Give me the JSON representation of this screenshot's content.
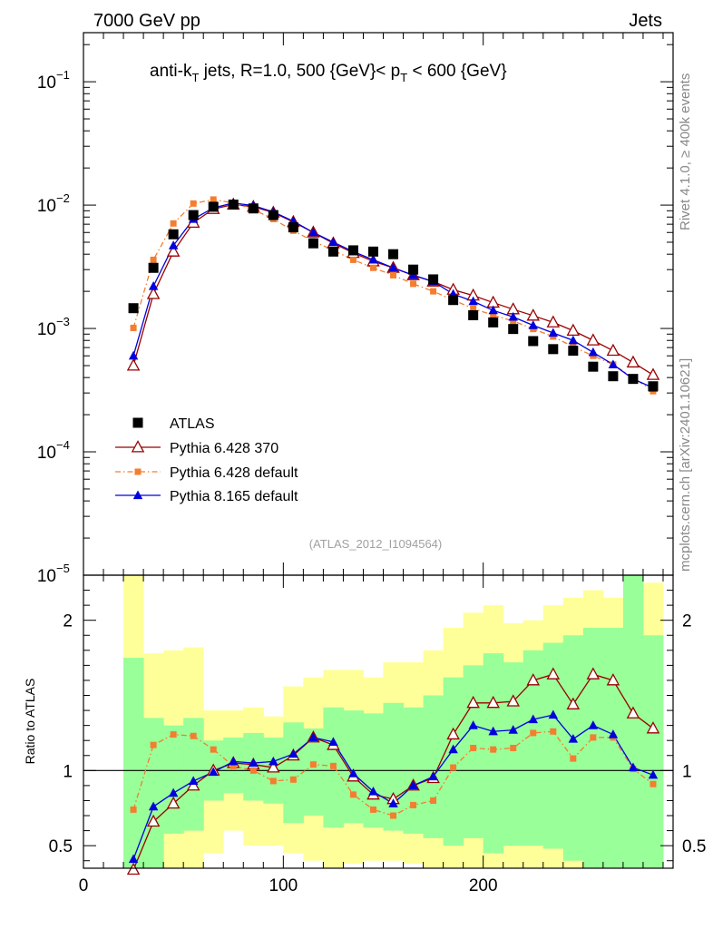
{
  "header": {
    "energy_label": "7000 GeV pp",
    "category_label": "Jets",
    "right_label_top": "Rivet 4.1.0, ≥ 400k events",
    "right_label_bottom": "mcplots.cern.ch [arXiv:2401.10621]"
  },
  "colors": {
    "atlas": "#000000",
    "py6_370": "#990000",
    "py6_default": "#f47d30",
    "py8_default": "#0000dd",
    "band_inner": "#99ff99",
    "band_outer": "#ffff99"
  },
  "chart_data": [
    {
      "type": "line",
      "scale": "log",
      "title": "anti-k_T jets, R=1.0, 500 {GeV}< p_T < 600 {GeV}",
      "title_parts": {
        "pre": "anti-k",
        "sub1": "T",
        "mid": " jets, R=1.0, 500 {GeV}< p",
        "sub2": "T",
        "post": " < 600 {GeV}"
      },
      "watermark": "(ATLAS_2012_I1094564)",
      "xlim": [
        0,
        295
      ],
      "ylim": [
        1e-05,
        0.25
      ],
      "y_ticks": [
        {
          "value": 0.1,
          "label": "10",
          "exp": "−1"
        },
        {
          "value": 0.01,
          "label": "10",
          "exp": "−2"
        },
        {
          "value": 0.001,
          "label": "10",
          "exp": "−3"
        },
        {
          "value": 0.0001,
          "label": "10",
          "exp": "−4"
        },
        {
          "value": 1e-05,
          "label": "10",
          "exp": "−5"
        }
      ],
      "x": [
        25,
        35,
        45,
        55,
        65,
        75,
        85,
        95,
        105,
        115,
        125,
        135,
        145,
        155,
        165,
        175,
        185,
        195,
        205,
        215,
        225,
        235,
        245,
        255,
        265,
        275,
        285
      ],
      "series": [
        {
          "name": "ATLAS",
          "style": "square",
          "values": [
            0.00146,
            0.0031,
            0.0058,
            0.0083,
            0.0097,
            0.0101,
            0.0094,
            0.0083,
            0.0066,
            0.0049,
            0.0042,
            0.0043,
            0.0042,
            0.004,
            0.003,
            0.0025,
            0.0017,
            0.00128,
            0.00112,
            0.00099,
            0.00079,
            0.00068,
            0.00066,
            0.00049,
            0.00041,
            0.00039,
            0.00034
          ]
        },
        {
          "name": "Pythia 6.428 370",
          "style": "open-triangle",
          "values": [
            0.0005,
            0.0019,
            0.0042,
            0.0072,
            0.0093,
            0.0101,
            0.0097,
            0.0087,
            0.0073,
            0.006,
            0.0049,
            0.0041,
            0.0035,
            0.0031,
            0.0027,
            0.0024,
            0.00206,
            0.00185,
            0.00162,
            0.00143,
            0.00127,
            0.00112,
            0.00096,
            0.0008,
            0.00066,
            0.00053,
            0.00042
          ]
        },
        {
          "name": "Pythia 6.428 default",
          "style": "dashdot-square",
          "values": [
            0.00101,
            0.0036,
            0.0071,
            0.0103,
            0.0111,
            0.0104,
            0.0092,
            0.0077,
            0.0062,
            0.0051,
            0.0043,
            0.0036,
            0.0031,
            0.0027,
            0.0023,
            0.002,
            0.0017,
            0.00145,
            0.00128,
            0.00115,
            0.00099,
            0.00086,
            0.00071,
            0.0006,
            0.00051,
            0.0004,
            0.00031
          ]
        },
        {
          "name": "Pythia 8.165 default",
          "style": "filled-triangle",
          "values": [
            0.0006,
            0.0022,
            0.0047,
            0.0077,
            0.0095,
            0.0104,
            0.0099,
            0.0088,
            0.0074,
            0.006,
            0.005,
            0.0042,
            0.0036,
            0.0031,
            0.0027,
            0.0024,
            0.0019,
            0.00166,
            0.0014,
            0.00124,
            0.00106,
            0.00092,
            0.0008,
            0.00064,
            0.00051,
            0.00039,
            0.00033
          ]
        }
      ]
    },
    {
      "type": "line",
      "ylabel": "Ratio to ATLAS",
      "xlim": [
        0,
        295
      ],
      "ylim": [
        0.35,
        2.3
      ],
      "x_ticks": [
        0,
        100,
        200
      ],
      "y_ticks": [
        0.5,
        1,
        2
      ],
      "x": [
        25,
        35,
        45,
        55,
        65,
        75,
        85,
        95,
        105,
        115,
        125,
        135,
        145,
        155,
        165,
        175,
        185,
        195,
        205,
        215,
        225,
        235,
        245,
        255,
        265,
        275,
        285
      ],
      "band_edges": [
        20,
        30,
        40,
        50,
        60,
        70,
        80,
        90,
        100,
        110,
        120,
        130,
        140,
        150,
        160,
        170,
        180,
        190,
        200,
        210,
        220,
        230,
        240,
        250,
        260,
        270,
        280,
        290
      ],
      "band_inner": [
        [
          0.35,
          1.75
        ],
        [
          0.35,
          1.35
        ],
        [
          0.58,
          1.3
        ],
        [
          0.6,
          1.35
        ],
        [
          0.8,
          1.2
        ],
        [
          0.85,
          1.22
        ],
        [
          0.8,
          1.25
        ],
        [
          0.78,
          1.22
        ],
        [
          0.65,
          1.32
        ],
        [
          0.7,
          1.28
        ],
        [
          0.62,
          1.42
        ],
        [
          0.65,
          1.4
        ],
        [
          0.62,
          1.38
        ],
        [
          0.6,
          1.45
        ],
        [
          0.58,
          1.42
        ],
        [
          0.55,
          1.5
        ],
        [
          0.5,
          1.62
        ],
        [
          0.55,
          1.7
        ],
        [
          0.45,
          1.78
        ],
        [
          0.5,
          1.72
        ],
        [
          0.5,
          1.8
        ],
        [
          0.48,
          1.85
        ],
        [
          0.4,
          1.9
        ],
        [
          0.35,
          1.95
        ],
        [
          0.35,
          1.95
        ],
        [
          0.35,
          2.3
        ],
        [
          0.35,
          1.9
        ]
      ],
      "band_outer": [
        [
          0.35,
          2.3
        ],
        [
          0.35,
          1.78
        ],
        [
          0.35,
          1.8
        ],
        [
          0.35,
          1.82
        ],
        [
          0.45,
          1.4
        ],
        [
          0.6,
          1.4
        ],
        [
          0.5,
          1.42
        ],
        [
          0.5,
          1.36
        ],
        [
          0.45,
          1.56
        ],
        [
          0.4,
          1.62
        ],
        [
          0.35,
          1.67
        ],
        [
          0.38,
          1.67
        ],
        [
          0.4,
          1.62
        ],
        [
          0.4,
          1.72
        ],
        [
          0.38,
          1.72
        ],
        [
          0.35,
          1.8
        ],
        [
          0.35,
          1.95
        ],
        [
          0.35,
          2.05
        ],
        [
          0.35,
          2.1
        ],
        [
          0.35,
          1.98
        ],
        [
          0.35,
          2.0
        ],
        [
          0.35,
          2.1
        ],
        [
          0.35,
          2.15
        ],
        [
          0.35,
          2.2
        ],
        [
          0.35,
          2.15
        ],
        [
          0.35,
          2.35
        ],
        [
          0.35,
          2.25
        ]
      ],
      "series": [
        {
          "name": "Pythia 6.428 370",
          "values": [
            0.34,
            0.66,
            0.78,
            0.9,
            1.0,
            1.05,
            1.04,
            1.02,
            1.1,
            1.22,
            1.17,
            0.96,
            0.84,
            0.81,
            0.9,
            0.95,
            1.24,
            1.45,
            1.45,
            1.46,
            1.6,
            1.64,
            1.44,
            1.64,
            1.6,
            1.38,
            1.28
          ]
        },
        {
          "name": "Pythia 6.428 default",
          "values": [
            0.74,
            1.17,
            1.24,
            1.23,
            1.14,
            1.03,
            1.0,
            0.93,
            0.94,
            1.04,
            1.03,
            0.84,
            0.74,
            0.7,
            0.77,
            0.8,
            1.02,
            1.15,
            1.14,
            1.15,
            1.25,
            1.26,
            1.08,
            1.22,
            1.22,
            1.01,
            0.91
          ]
        },
        {
          "name": "Pythia 8.165 default",
          "values": [
            0.41,
            0.76,
            0.85,
            0.93,
            0.99,
            1.06,
            1.05,
            1.06,
            1.11,
            1.22,
            1.19,
            0.98,
            0.86,
            0.78,
            0.9,
            0.96,
            1.14,
            1.3,
            1.26,
            1.27,
            1.34,
            1.37,
            1.21,
            1.3,
            1.24,
            1.02,
            0.97
          ]
        }
      ]
    }
  ]
}
